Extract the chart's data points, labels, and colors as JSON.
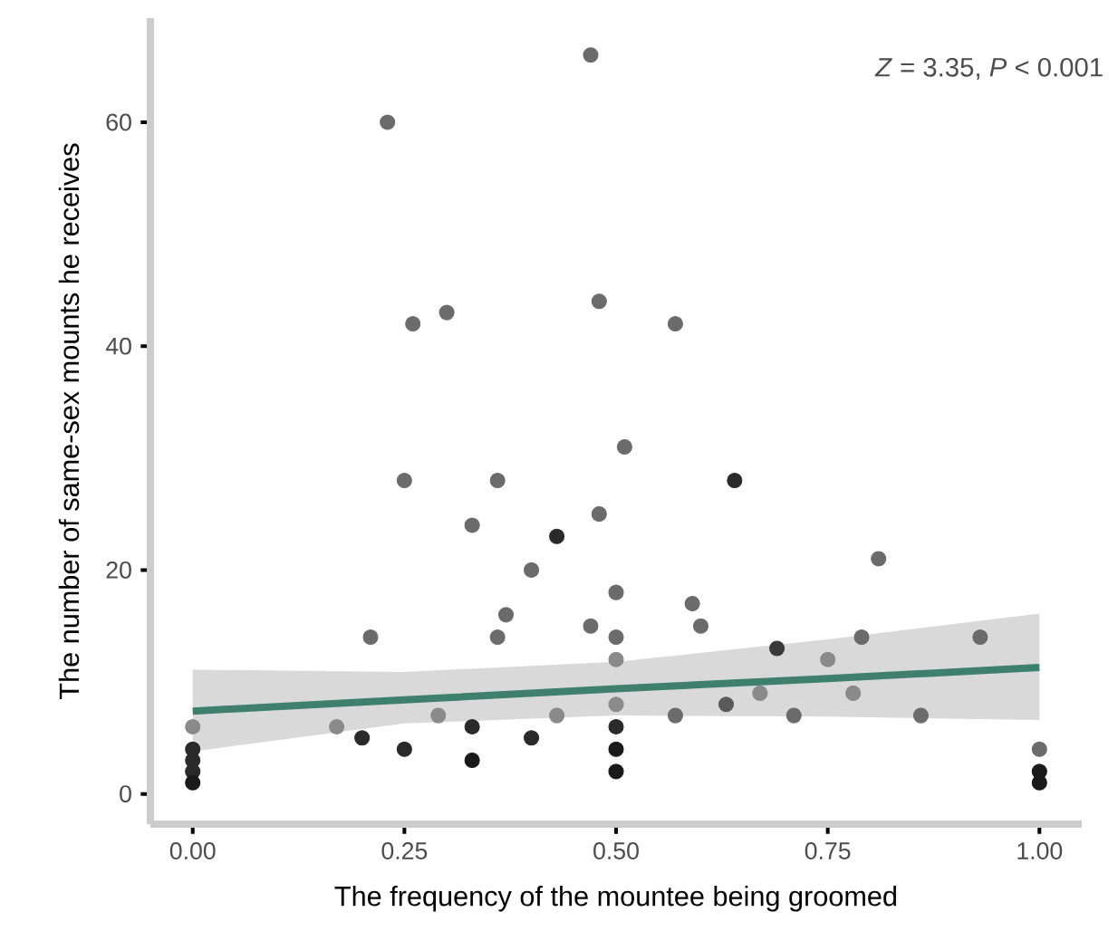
{
  "chart_data": {
    "type": "scatter",
    "xlabel": "The frequency of the mountee being groomed",
    "ylabel": "The number of same-sex mounts he receives",
    "annotations": [
      "*Z* = 3.35, *P* < 0.001"
    ],
    "xlim": [
      -0.05,
      1.05
    ],
    "ylim": [
      -2.7,
      69.3
    ],
    "xticks": [
      {
        "value": 0,
        "label": "0.00"
      },
      {
        "value": 0.25,
        "label": "0.25"
      },
      {
        "value": 0.5,
        "label": "0.50"
      },
      {
        "value": 0.75,
        "label": "0.75"
      },
      {
        "value": 1,
        "label": "1.00"
      }
    ],
    "yticks": [
      0,
      20,
      40,
      60
    ],
    "grid": false,
    "series": [
      {
        "marker": "circle",
        "x": [
          0.47,
          0.23,
          0.26,
          0.3,
          0.48,
          0.57,
          0.51,
          0.25,
          0.36,
          0.33,
          0.43,
          0.48,
          0.4,
          0.5,
          0.37,
          0.21,
          0.36,
          0.47,
          0.5,
          0.5,
          0,
          0,
          0,
          0,
          0,
          0.17,
          0.2,
          0.25,
          0.29,
          0.33,
          0.33,
          0.4,
          0.43,
          0.5,
          0.5,
          0.5,
          0.5,
          0.64,
          0.81,
          0.59,
          0.6,
          0.69,
          0.79,
          0.93,
          0.75,
          0.67,
          0.78,
          0.57,
          0.63,
          0.71,
          0.86,
          1,
          1,
          1
        ],
        "values": [
          66,
          60,
          42,
          43,
          44,
          42,
          31,
          28,
          28,
          24,
          23,
          25,
          20,
          18,
          16,
          14,
          14,
          15,
          14,
          12,
          6,
          4,
          3,
          2,
          1,
          6,
          5,
          4,
          7,
          6,
          3,
          5,
          7,
          8,
          6,
          4,
          2,
          28,
          21,
          17,
          15,
          13,
          14,
          14,
          12,
          9,
          9,
          7,
          8,
          7,
          7,
          4,
          2,
          1
        ],
        "colors": [
          "#6b6b6b",
          "#6b6b6b",
          "#6b6b6b",
          "#6b6b6b",
          "#6b6b6b",
          "#6b6b6b",
          "#6b6b6b",
          "#6b6b6b",
          "#6b6b6b",
          "#6b6b6b",
          "#2a2a2a",
          "#6b6b6b",
          "#6b6b6b",
          "#6b6b6b",
          "#6b6b6b",
          "#6b6b6b",
          "#6b6b6b",
          "#6b6b6b",
          "#6b6b6b",
          "#8a8a8a",
          "#8a8a8a",
          "#2a2a2a",
          "#2a2a2a",
          "#2a2a2a",
          "#1a1a1a",
          "#8a8a8a",
          "#2a2a2a",
          "#2a2a2a",
          "#8a8a8a",
          "#2a2a2a",
          "#1a1a1a",
          "#2a2a2a",
          "#8a8a8a",
          "#8a8a8a",
          "#2a2a2a",
          "#1a1a1a",
          "#1a1a1a",
          "#2a2a2a",
          "#6b6b6b",
          "#6b6b6b",
          "#6b6b6b",
          "#3a3a3a",
          "#6b6b6b",
          "#6b6b6b",
          "#8a8a8a",
          "#8a8a8a",
          "#8a8a8a",
          "#6b6b6b",
          "#5a5a5a",
          "#6b6b6b",
          "#6b6b6b",
          "#6b6b6b",
          "#1a1a1a",
          "#1a1a1a"
        ]
      },
      {
        "type": "line",
        "color": "#3e7f6e",
        "x": [
          0,
          0.25,
          0.5,
          0.75,
          1
        ],
        "values": [
          7.4,
          8.4,
          9.4,
          10.3,
          11.3
        ],
        "lower": [
          3.8,
          6.3,
          7.0,
          6.9,
          6.6
        ],
        "upper": [
          11.1,
          10.9,
          11.8,
          13.8,
          16.1
        ]
      }
    ]
  }
}
